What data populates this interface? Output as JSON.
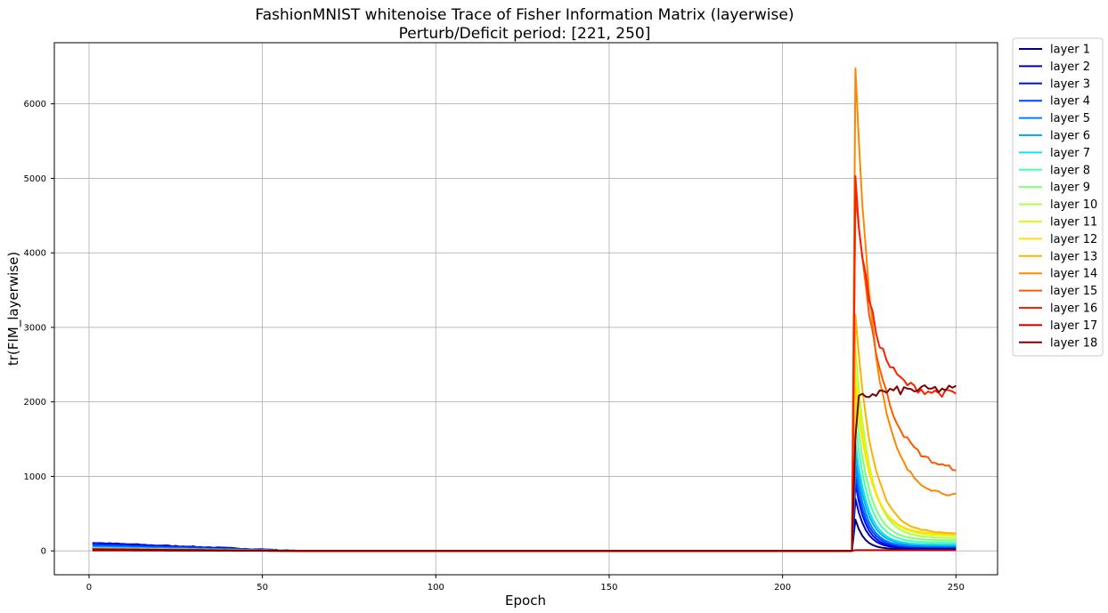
{
  "chart_data": {
    "type": "line",
    "title": "FashionMNIST whitenoise Trace of Fisher Information Matrix (layerwise)",
    "subtitle": "Perturb/Deficit period: [221, 250]",
    "xlabel": "Epoch",
    "ylabel": "tr(FIM_layerwise)",
    "xlim": [
      -10,
      262
    ],
    "ylim": [
      -320,
      6820
    ],
    "xticks": [
      0,
      50,
      100,
      150,
      200,
      250
    ],
    "yticks": [
      0,
      1000,
      2000,
      3000,
      4000,
      5000,
      6000
    ],
    "grid": true,
    "legend_position": "outside-right",
    "series": [
      {
        "name": "layer 1",
        "color": "#00007f",
        "early": 40,
        "peak": 420,
        "end": 25,
        "decay": 2.5
      },
      {
        "name": "layer 2",
        "color": "#0000c4",
        "early": 110,
        "peak": 700,
        "end": 35,
        "decay": 3.0
      },
      {
        "name": "layer 3",
        "color": "#0010ff",
        "early": 100,
        "peak": 900,
        "end": 45,
        "decay": 3.0
      },
      {
        "name": "layer 4",
        "color": "#0044ff",
        "early": 80,
        "peak": 1000,
        "end": 55,
        "decay": 3.2
      },
      {
        "name": "layer 5",
        "color": "#0080ff",
        "early": 60,
        "peak": 1150,
        "end": 60,
        "decay": 3.3
      },
      {
        "name": "layer 6",
        "color": "#00b0ff",
        "early": 50,
        "peak": 1300,
        "end": 75,
        "decay": 3.5
      },
      {
        "name": "layer 7",
        "color": "#16e2e2",
        "early": 40,
        "peak": 1450,
        "end": 85,
        "decay": 3.6
      },
      {
        "name": "layer 8",
        "color": "#49ffad",
        "early": 35,
        "peak": 1700,
        "end": 110,
        "decay": 3.8
      },
      {
        "name": "layer 9",
        "color": "#7cff79",
        "early": 30,
        "peak": 2000,
        "end": 140,
        "decay": 4.0
      },
      {
        "name": "layer 10",
        "color": "#adff49",
        "early": 30,
        "peak": 2700,
        "end": 170,
        "decay": 4.2
      },
      {
        "name": "layer 11",
        "color": "#e2f716",
        "early": 25,
        "peak": 2400,
        "end": 200,
        "decay": 4.5
      },
      {
        "name": "layer 12",
        "color": "#ffe200",
        "early": 25,
        "peak": 2200,
        "end": 220,
        "decay": 4.6
      },
      {
        "name": "layer 13",
        "color": "#ffb100",
        "early": 25,
        "peak": 3200,
        "end": 230,
        "decay": 4.8
      },
      {
        "name": "layer 14",
        "color": "#ff8600",
        "early": 30,
        "peak": 6480,
        "end": 720,
        "decay": 5.5
      },
      {
        "name": "layer 15",
        "color": "#ff5900",
        "early": 25,
        "peak": 4900,
        "end": 1040,
        "decay": 7.0
      },
      {
        "name": "layer 16",
        "color": "#ff1e00",
        "early": 20,
        "peak": 4920,
        "end": 2100,
        "decay": 5.0
      },
      {
        "name": "layer 17",
        "color": "#c40000",
        "early": 5,
        "peak": 10,
        "end": 10,
        "decay": 1.0
      },
      {
        "name": "layer 18",
        "color": "#7f0000",
        "early": 20,
        "peak": 1700,
        "end": 2170,
        "decay": 0
      }
    ]
  }
}
